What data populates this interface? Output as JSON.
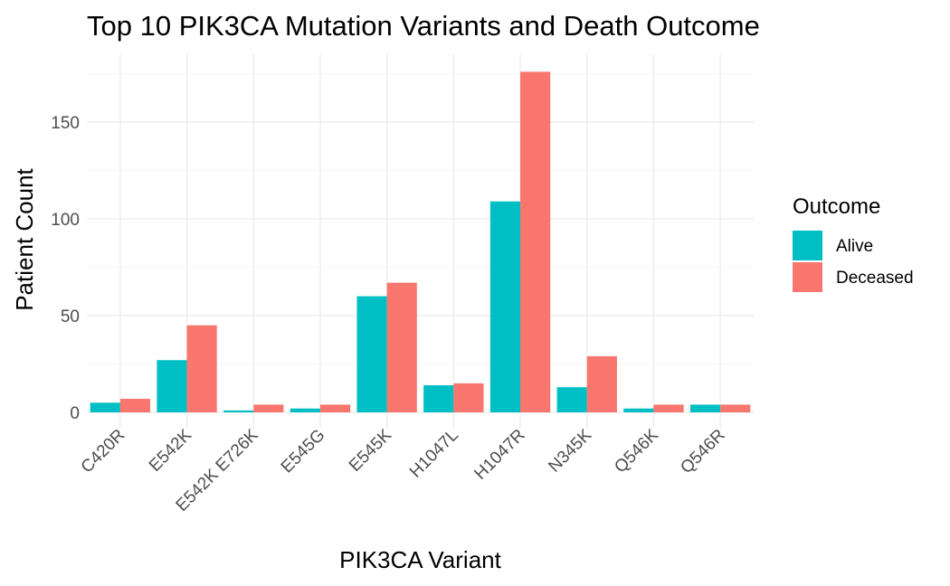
{
  "chart_data": {
    "type": "bar",
    "title": "Top 10 PIK3CA Mutation Variants and Death Outcome",
    "xlabel": "PIK3CA Variant",
    "ylabel": "Patient Count",
    "categories": [
      "C420R",
      "E542K",
      "E542K E726K",
      "E545G",
      "E545K",
      "H1047L",
      "H1047R",
      "N345K",
      "Q546K",
      "Q546R"
    ],
    "series": [
      {
        "name": "Alive",
        "color": "#00BFC4",
        "values": [
          5,
          27,
          1,
          2,
          60,
          14,
          109,
          13,
          2,
          4
        ]
      },
      {
        "name": "Deceased",
        "color": "#F8766D",
        "values": [
          7,
          45,
          4,
          4,
          67,
          15,
          176,
          29,
          4,
          4
        ]
      }
    ],
    "yticks": [
      0,
      50,
      100,
      150
    ],
    "ylim": [
      0,
      185
    ],
    "grid": true,
    "legend": {
      "title": "Outcome",
      "position": "right"
    }
  }
}
